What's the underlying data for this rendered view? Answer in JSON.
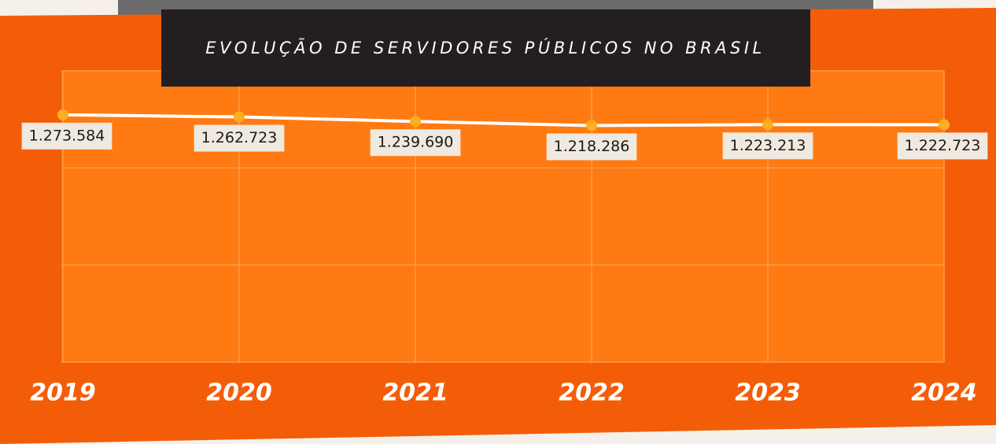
{
  "chart_data": {
    "type": "line",
    "title": "EVOLUÇÃO DE SERVIDORES PÚBLICOS NO BRASIL",
    "categories": [
      "2019",
      "2020",
      "2021",
      "2022",
      "2023",
      "2024"
    ],
    "series": [
      {
        "color": "#ffffff",
        "values": [
          1273584,
          1262723,
          1239690,
          1218286,
          1223213,
          1222723
        ],
        "value_labels": [
          "1.273.584",
          "1.262.723",
          "1.239.690",
          "1.218.286",
          "1.223.213",
          "1.222.723"
        ]
      }
    ],
    "ylim": [
      0,
      1500000
    ]
  }
}
